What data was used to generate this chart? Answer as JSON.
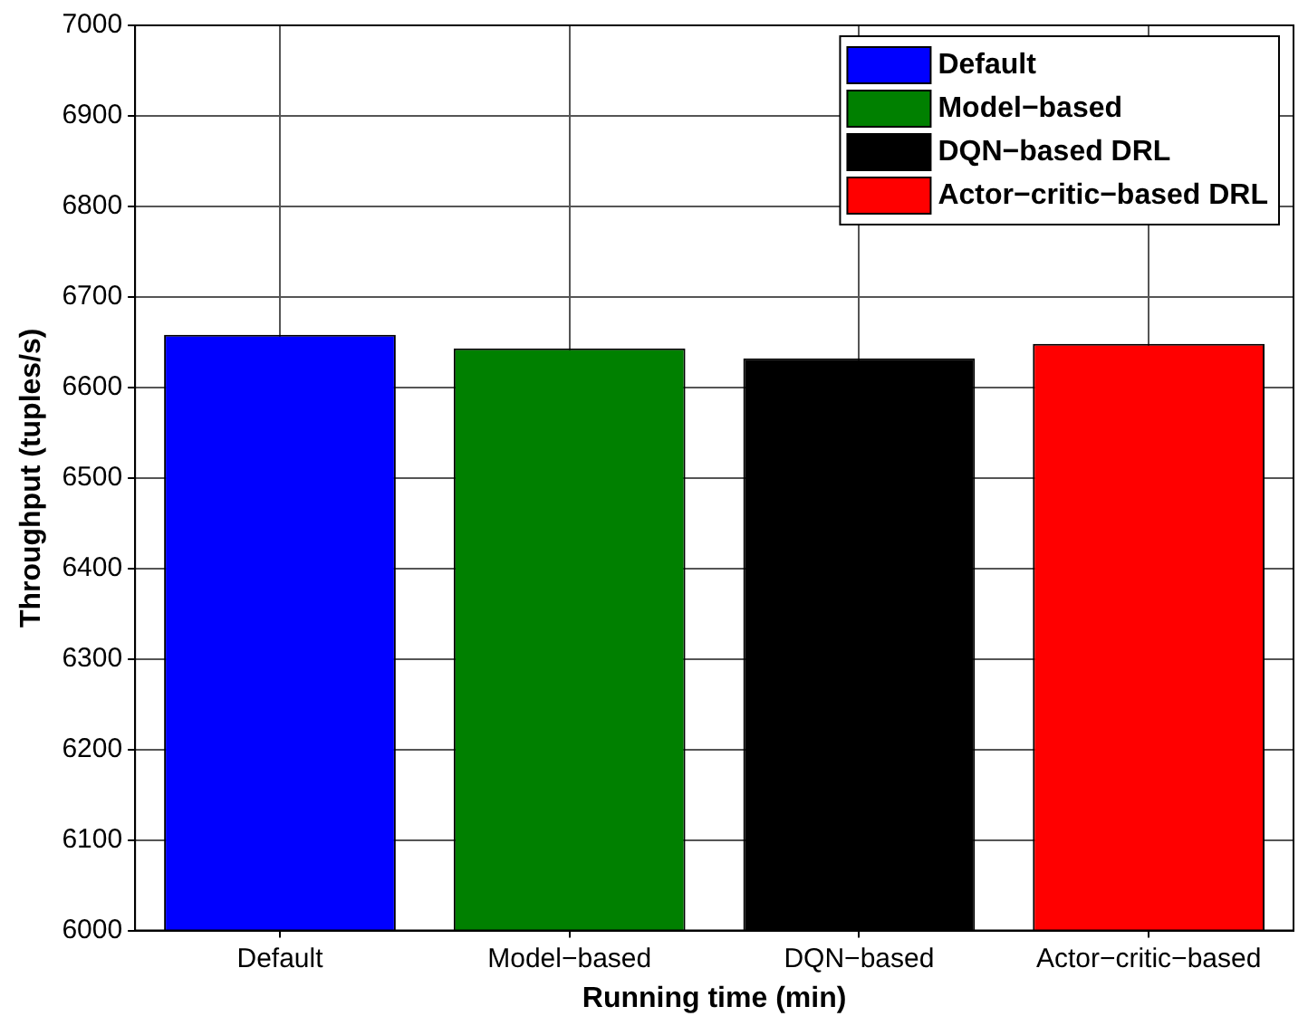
{
  "chart_data": {
    "type": "bar",
    "xlabel": "Running time (min)",
    "ylabel": "Throughput (tuples/s)",
    "categories": [
      "Default",
      "Model−based",
      "DQN−based",
      "Actor−critic−based"
    ],
    "series": [
      {
        "name": "Default",
        "color": "#0000ff",
        "values": [
          6658,
          null,
          null,
          null
        ]
      },
      {
        "name": "Model−based",
        "color": "#008000",
        "values": [
          null,
          6643,
          null,
          null
        ]
      },
      {
        "name": "DQN−based DRL",
        "color": "#000000",
        "values": [
          null,
          null,
          6632,
          null
        ]
      },
      {
        "name": "Actor−critic−based DRL",
        "color": "#ff0000",
        "values": [
          null,
          null,
          null,
          6648
        ]
      }
    ],
    "ylim": [
      6000,
      7000
    ],
    "yticks": [
      6000,
      6100,
      6200,
      6300,
      6400,
      6500,
      6600,
      6700,
      6800,
      6900,
      7000
    ],
    "grid": true,
    "legend": "top right"
  }
}
